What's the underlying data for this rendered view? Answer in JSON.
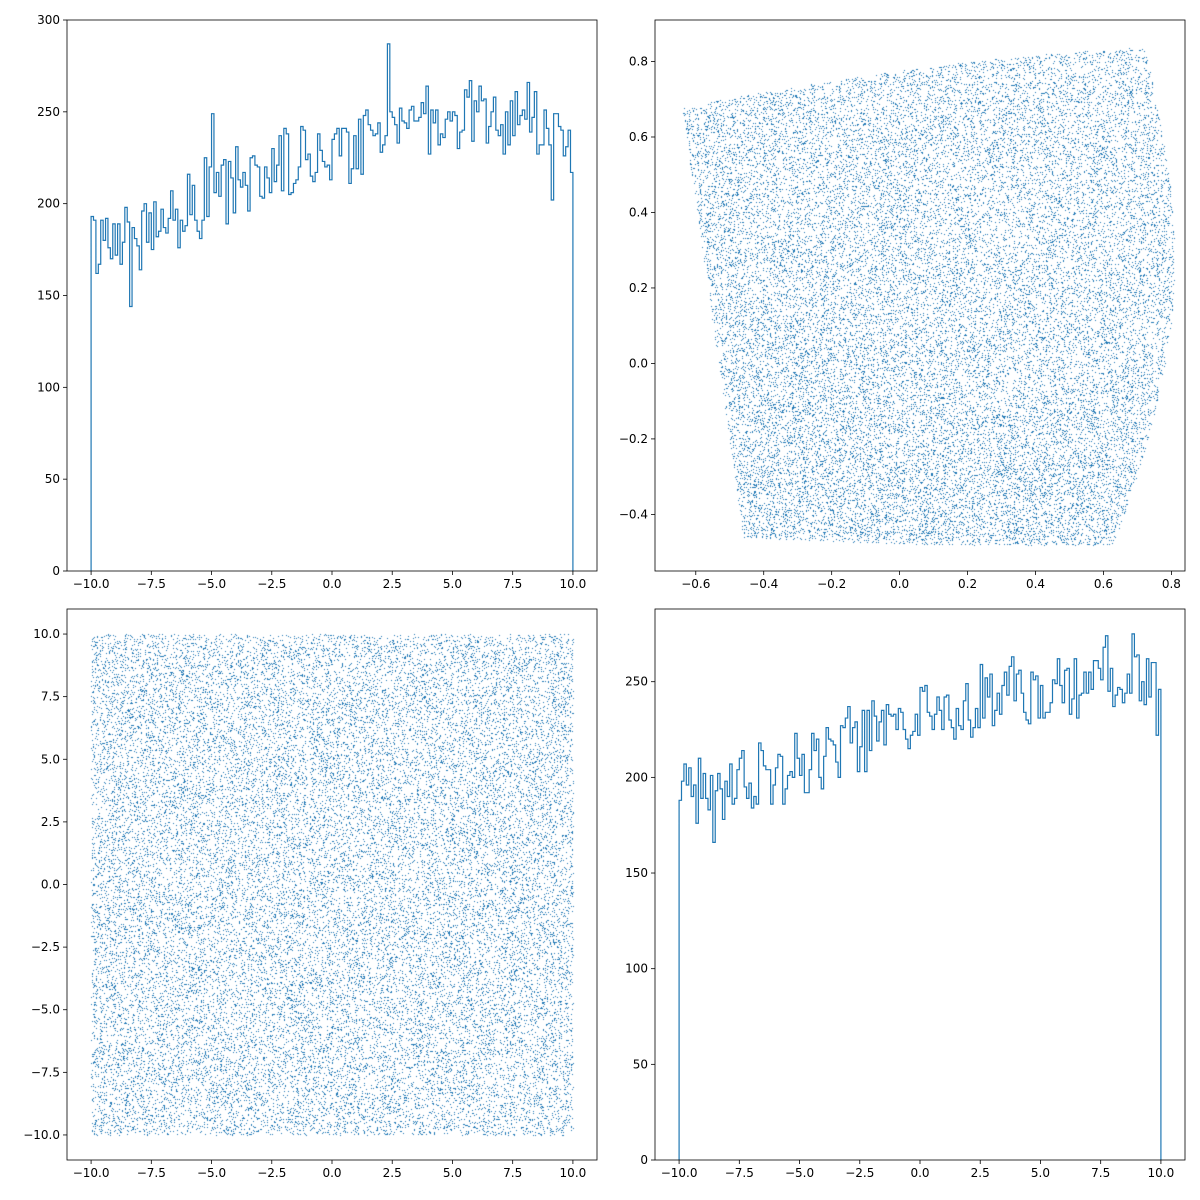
{
  "figure": {
    "accent_color": "#1f77b4",
    "background": "#ffffff"
  },
  "chart_data": [
    {
      "type": "histogram",
      "histtype": "step",
      "xlim": [
        -11.0,
        11.0
      ],
      "ylim": [
        0,
        300
      ],
      "x_range": [
        -10,
        10
      ],
      "bins": 200,
      "xticks": [
        -10.0,
        -7.5,
        -5.0,
        -2.5,
        0.0,
        2.5,
        5.0,
        7.5,
        10.0
      ],
      "xtick_labels": [
        "−10.0",
        "−7.5",
        "−5.0",
        "−2.5",
        "0.0",
        "2.5",
        "5.0",
        "7.5",
        "10.0"
      ],
      "yticks": [
        0,
        50,
        100,
        150,
        200,
        250,
        300
      ],
      "ytick_labels": [
        "0",
        "50",
        "100",
        "150",
        "200",
        "250",
        "300"
      ],
      "trend_points": [
        [
          -10,
          178
        ],
        [
          -7.5,
          188
        ],
        [
          -5,
          204
        ],
        [
          -2.5,
          218
        ],
        [
          0,
          230
        ],
        [
          2.5,
          244
        ],
        [
          5,
          248
        ],
        [
          7.5,
          247
        ],
        [
          10,
          232
        ]
      ],
      "noise_amplitude": 16,
      "highlights": [
        [
          2.3,
          287
        ],
        [
          -8.3,
          144
        ],
        [
          -4.9,
          249
        ],
        [
          9.2,
          202
        ]
      ]
    },
    {
      "type": "scatter",
      "marker": "pixel",
      "xlim": [
        -0.72,
        0.84
      ],
      "ylim": [
        -0.55,
        0.91
      ],
      "xticks": [
        -0.6,
        -0.4,
        -0.2,
        0.0,
        0.2,
        0.4,
        0.6,
        0.8
      ],
      "xtick_labels": [
        "−0.6",
        "−0.4",
        "−0.2",
        "0.0",
        "0.2",
        "0.4",
        "0.6",
        "0.8"
      ],
      "yticks": [
        -0.4,
        -0.2,
        0.0,
        0.2,
        0.4,
        0.6,
        0.8
      ],
      "ytick_labels": [
        "−0.4",
        "−0.2",
        "0.0",
        "0.2",
        "0.4",
        "0.6",
        "0.8"
      ],
      "region_corners": {
        "top_left": [
          -0.64,
          0.68
        ],
        "top_right": [
          0.72,
          0.84
        ],
        "bottom_right": [
          0.63,
          -0.48
        ],
        "bottom_left": [
          -0.46,
          -0.46
        ]
      },
      "point_count": 28000
    },
    {
      "type": "scatter",
      "marker": "pixel",
      "xlim": [
        -11.0,
        11.0
      ],
      "ylim": [
        -11.0,
        11.0
      ],
      "x_range": [
        -10,
        10
      ],
      "y_range": [
        -10,
        10
      ],
      "xticks": [
        -10.0,
        -7.5,
        -5.0,
        -2.5,
        0.0,
        2.5,
        5.0,
        7.5,
        10.0
      ],
      "xtick_labels": [
        "−10.0",
        "−7.5",
        "−5.0",
        "−2.5",
        "0.0",
        "2.5",
        "5.0",
        "7.5",
        "10.0"
      ],
      "yticks": [
        -10.0,
        -7.5,
        -5.0,
        -2.5,
        0.0,
        2.5,
        5.0,
        7.5,
        10.0
      ],
      "ytick_labels": [
        "−10.0",
        "−7.5",
        "−5.0",
        "−2.5",
        "0.0",
        "2.5",
        "5.0",
        "7.5",
        "10.0"
      ],
      "point_count": 30000
    },
    {
      "type": "histogram",
      "histtype": "step",
      "xlim": [
        -11.0,
        11.0
      ],
      "ylim": [
        0,
        288
      ],
      "x_range": [
        -10,
        10
      ],
      "bins": 200,
      "xticks": [
        -10.0,
        -7.5,
        -5.0,
        -2.5,
        0.0,
        2.5,
        5.0,
        7.5,
        10.0
      ],
      "xtick_labels": [
        "−10.0",
        "−7.5",
        "−5.0",
        "−2.5",
        "0.0",
        "2.5",
        "5.0",
        "7.5",
        "10.0"
      ],
      "yticks": [
        0,
        50,
        100,
        150,
        200,
        250
      ],
      "ytick_labels": [
        "0",
        "50",
        "100",
        "150",
        "200",
        "250"
      ],
      "trend_points": [
        [
          -10,
          188
        ],
        [
          -7.5,
          197
        ],
        [
          -5,
          208
        ],
        [
          -2.5,
          220
        ],
        [
          0,
          232
        ],
        [
          2.5,
          240
        ],
        [
          5,
          247
        ],
        [
          7.5,
          252
        ],
        [
          10,
          244
        ]
      ],
      "noise_amplitude": 16,
      "highlights": [
        [
          8.9,
          275
        ],
        [
          -8.6,
          166
        ],
        [
          -9.2,
          210
        ],
        [
          3.8,
          263
        ]
      ]
    }
  ]
}
